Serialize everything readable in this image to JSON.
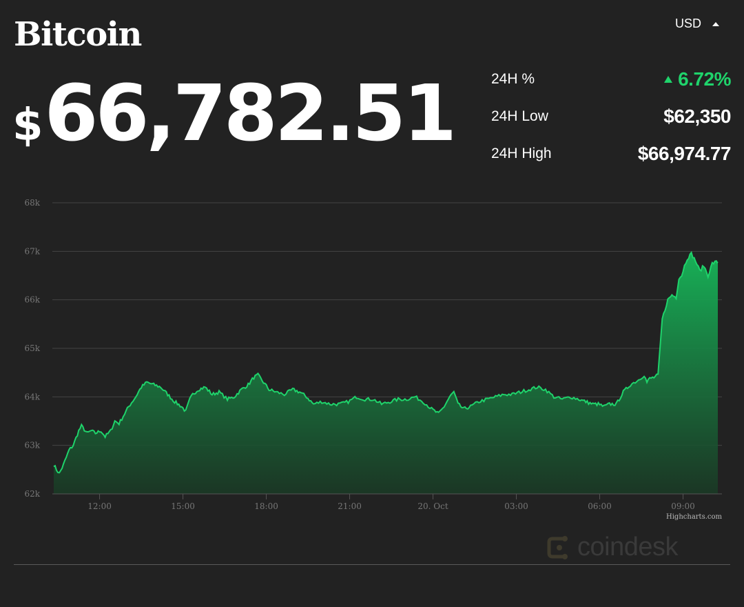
{
  "asset": {
    "name": "Bitcoin"
  },
  "price": {
    "symbol": "$",
    "value": "66,782.51"
  },
  "currency": {
    "selected": "USD"
  },
  "stats": [
    {
      "label": "24H %",
      "value": "6.72%",
      "direction": "up"
    },
    {
      "label": "24H Low",
      "value": "$62,350"
    },
    {
      "label": "24H High",
      "value": "$66,974.77"
    }
  ],
  "colors": {
    "background": "#222222",
    "positive": "#1fd36b",
    "line": "#1fd36b",
    "area_top": "#17b85a",
    "grid": "#444444"
  },
  "chart_data": {
    "type": "area",
    "x_tick_labels": [
      "12:00",
      "15:00",
      "18:00",
      "21:00",
      "20. Oct",
      "03:00",
      "06:00",
      "09:00"
    ],
    "y_tick_labels": [
      "62k",
      "63k",
      "64k",
      "65k",
      "66k",
      "67k",
      "68k"
    ],
    "ylim": [
      62000,
      68000
    ],
    "xlim_hours": [
      10.3,
      34.4
    ],
    "x_tick_hours": [
      12,
      15,
      18,
      21,
      24,
      27,
      30,
      33
    ],
    "grid": true,
    "legend": "none",
    "series": [
      {
        "x_hours": [
          10.35,
          10.45,
          10.55,
          10.7,
          10.9,
          11.05,
          11.25,
          11.35,
          11.55,
          11.7,
          11.85,
          12.05,
          12.2,
          12.4,
          12.55,
          12.7,
          12.85,
          13.05,
          13.3,
          13.5,
          13.7,
          13.95,
          14.2,
          14.45,
          14.7,
          14.95,
          15.1,
          15.25,
          15.35,
          15.55,
          15.8,
          16.05,
          16.3,
          16.6,
          16.85,
          17.1,
          17.35,
          17.55,
          17.7,
          17.9,
          18.1,
          18.35,
          18.65,
          18.95,
          19.2,
          19.45,
          19.7,
          20.0,
          20.3,
          20.65,
          20.95,
          21.25,
          21.55,
          21.85,
          22.15,
          22.45,
          22.75,
          23.05,
          23.35,
          23.65,
          23.95,
          24.2,
          24.4,
          24.6,
          24.75,
          24.9,
          25.1,
          25.35,
          25.65,
          25.95,
          26.25,
          26.55,
          26.85,
          27.15,
          27.45,
          27.75,
          28.05,
          28.35,
          28.65,
          28.95,
          29.25,
          29.5,
          29.75,
          29.95,
          30.15,
          30.35,
          30.6,
          30.85,
          31.1,
          31.4,
          31.6,
          31.7,
          31.8,
          31.95,
          32.1,
          32.25,
          32.45,
          32.6,
          32.75,
          32.85,
          32.95,
          33.05,
          33.15,
          33.3,
          33.45,
          33.6,
          33.75,
          33.9,
          34.05,
          34.2,
          34.25
        ],
        "y": [
          62600,
          62500,
          62420,
          62600,
          62900,
          63000,
          63300,
          63400,
          63250,
          63300,
          63250,
          63300,
          63180,
          63300,
          63500,
          63450,
          63600,
          63800,
          64000,
          64200,
          64300,
          64250,
          64200,
          64050,
          63900,
          63800,
          63700,
          63950,
          64050,
          64150,
          64200,
          64050,
          64100,
          63950,
          64000,
          64150,
          64250,
          64400,
          64450,
          64300,
          64150,
          64100,
          64050,
          64150,
          64100,
          64000,
          63850,
          63900,
          63850,
          63850,
          63900,
          64000,
          63950,
          63950,
          63850,
          63900,
          63950,
          63950,
          64000,
          63900,
          63750,
          63650,
          63800,
          64000,
          64100,
          63850,
          63750,
          63800,
          63900,
          63950,
          64000,
          64050,
          64050,
          64100,
          64150,
          64200,
          64150,
          64000,
          63950,
          64000,
          63950,
          63900,
          63850,
          63850,
          63800,
          63850,
          63850,
          64100,
          64250,
          64350,
          64450,
          64300,
          64380,
          64400,
          64450,
          65600,
          66000,
          66100,
          66050,
          66450,
          66500,
          66700,
          66850,
          66950,
          66800,
          66600,
          66700,
          66500,
          66750,
          66780,
          66782
        ]
      }
    ]
  },
  "credits": "Highcharts.com",
  "watermark": "coindesk"
}
